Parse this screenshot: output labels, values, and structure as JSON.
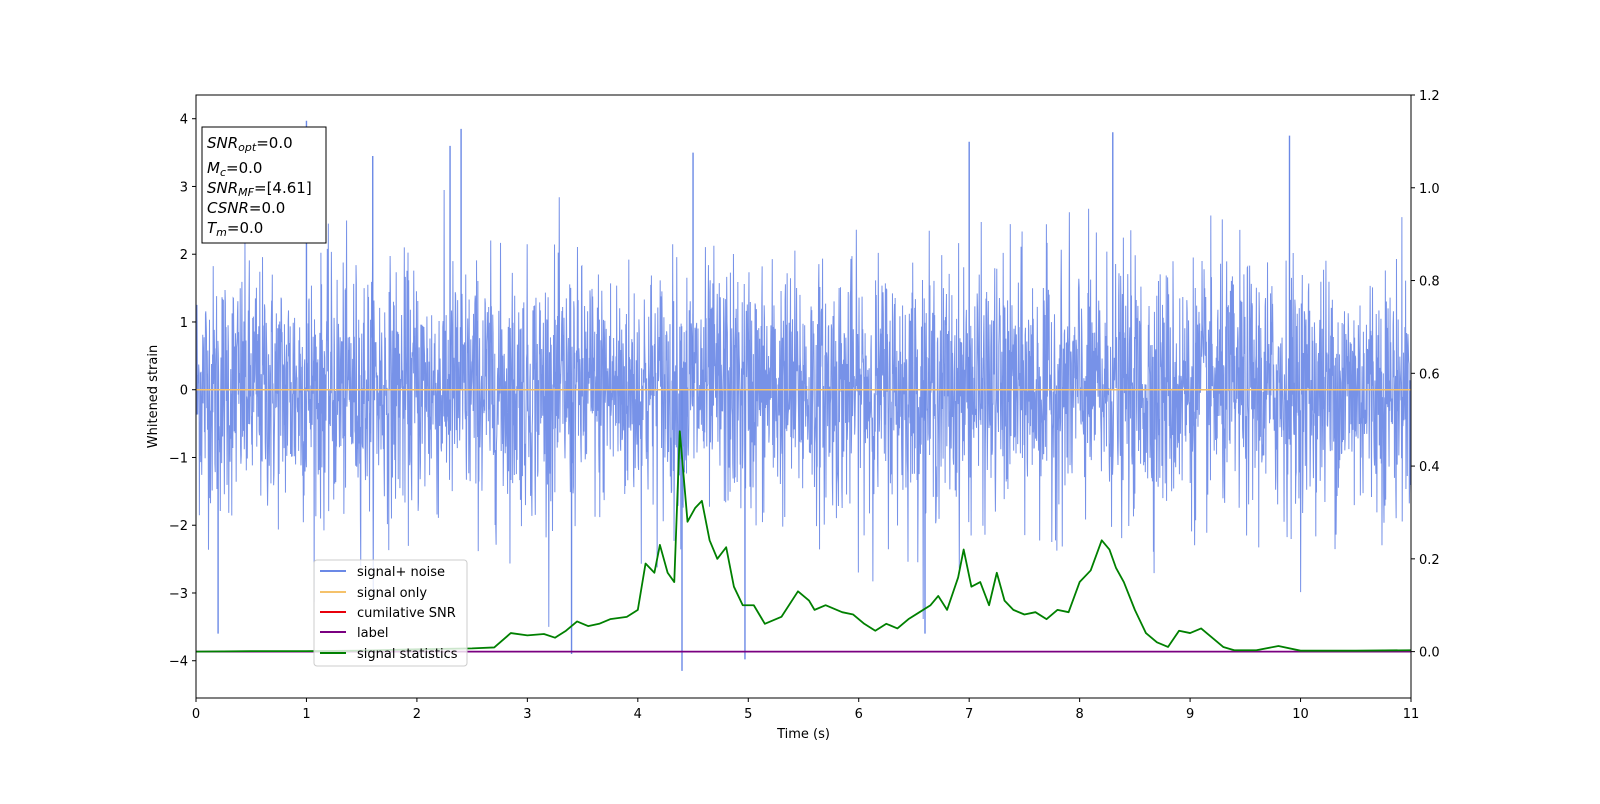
{
  "chart_data": {
    "type": "line",
    "xlabel": "Time (s)",
    "ylabel": "Whitened strain",
    "xlim": [
      0,
      11
    ],
    "ylim": [
      -4.55,
      4.35
    ],
    "y2lim": [
      -0.1,
      1.2
    ],
    "x_ticks": [
      "0",
      "1",
      "2",
      "3",
      "4",
      "5",
      "6",
      "7",
      "8",
      "9",
      "10",
      "11"
    ],
    "y_ticks": [
      "4",
      "3",
      "2",
      "1",
      "0",
      "−1",
      "−2",
      "−3",
      "−4"
    ],
    "y2_ticks": [
      "0.0",
      "0.2",
      "0.4",
      "0.6",
      "0.8",
      "1.0",
      "1.2"
    ],
    "grid": false,
    "legend_placement": "lower-left",
    "info_box": {
      "line1": {
        "main": "SNR",
        "sub": "opt",
        "rest": "=0.0"
      },
      "line2": {
        "main": "M",
        "sub": "c",
        "rest": "=0.0"
      },
      "line3": {
        "main": "SNR",
        "sub": "MF",
        "rest": "=[4.61]"
      },
      "line4": {
        "main": "CSNR",
        "sub": "",
        "rest": "=0.0"
      },
      "line5": {
        "main": "T",
        "sub": "m",
        "rest": "=0.0"
      }
    },
    "series": [
      {
        "name": "signal+ noise",
        "color": "#6b89e6",
        "axis": "left",
        "description_values": "dense Gaussian whitened noise, roughly ±2.5 with spikes to 4.0 and -4.2",
        "spikes": [
          [
            0.2,
            -3.6
          ],
          [
            1.0,
            3.97
          ],
          [
            2.4,
            3.85
          ],
          [
            4.4,
            -4.15
          ],
          [
            4.97,
            -3.98
          ],
          [
            6.6,
            -3.6
          ],
          [
            7.0,
            3.66
          ],
          [
            3.4,
            -3.9
          ],
          [
            9.9,
            3.75
          ],
          [
            2.3,
            3.6
          ],
          [
            1.6,
            3.45
          ],
          [
            4.5,
            3.5
          ],
          [
            8.3,
            3.8
          ]
        ]
      },
      {
        "name": "signal only",
        "color": "#f5c26b",
        "axis": "left",
        "x": [
          0,
          11
        ],
        "values": [
          0,
          0
        ]
      },
      {
        "name": "cumilative SNR",
        "color": "#e8000b",
        "axis": "right",
        "x": [],
        "values": []
      },
      {
        "name": "label",
        "color": "#7a0080",
        "axis": "right",
        "x": [
          0,
          11
        ],
        "values": [
          0,
          0
        ]
      },
      {
        "name": "signal statistics",
        "color": "#008000",
        "axis": "right",
        "x": [
          0,
          0.5,
          1.0,
          1.5,
          2.0,
          2.5,
          2.7,
          2.85,
          3.0,
          3.15,
          3.25,
          3.35,
          3.45,
          3.55,
          3.65,
          3.75,
          3.9,
          4.0,
          4.07,
          4.15,
          4.2,
          4.27,
          4.33,
          4.38,
          4.45,
          4.52,
          4.58,
          4.65,
          4.72,
          4.8,
          4.87,
          4.95,
          5.05,
          5.15,
          5.3,
          5.45,
          5.55,
          5.6,
          5.7,
          5.85,
          5.95,
          6.05,
          6.15,
          6.25,
          6.35,
          6.45,
          6.55,
          6.65,
          6.72,
          6.8,
          6.9,
          6.95,
          7.02,
          7.1,
          7.18,
          7.25,
          7.32,
          7.4,
          7.5,
          7.6,
          7.7,
          7.8,
          7.9,
          8.0,
          8.1,
          8.2,
          8.27,
          8.33,
          8.4,
          8.5,
          8.6,
          8.7,
          8.8,
          8.9,
          9.0,
          9.1,
          9.2,
          9.3,
          9.4,
          9.6,
          9.8,
          10.0,
          10.5,
          11.0
        ],
        "values": [
          0.0,
          0.001,
          0.001,
          0.002,
          0.005,
          0.007,
          0.009,
          0.04,
          0.035,
          0.038,
          0.03,
          0.045,
          0.065,
          0.055,
          0.06,
          0.07,
          0.075,
          0.09,
          0.19,
          0.17,
          0.23,
          0.17,
          0.15,
          0.475,
          0.28,
          0.31,
          0.325,
          0.24,
          0.2,
          0.225,
          0.14,
          0.1,
          0.1,
          0.06,
          0.075,
          0.13,
          0.11,
          0.09,
          0.1,
          0.085,
          0.08,
          0.06,
          0.045,
          0.06,
          0.05,
          0.07,
          0.085,
          0.1,
          0.12,
          0.09,
          0.16,
          0.22,
          0.14,
          0.15,
          0.1,
          0.17,
          0.11,
          0.09,
          0.08,
          0.085,
          0.07,
          0.09,
          0.085,
          0.15,
          0.175,
          0.24,
          0.22,
          0.18,
          0.15,
          0.09,
          0.04,
          0.02,
          0.01,
          0.045,
          0.04,
          0.05,
          0.03,
          0.01,
          0.003,
          0.003,
          0.012,
          0.002,
          0.002,
          0.003
        ]
      }
    ]
  }
}
